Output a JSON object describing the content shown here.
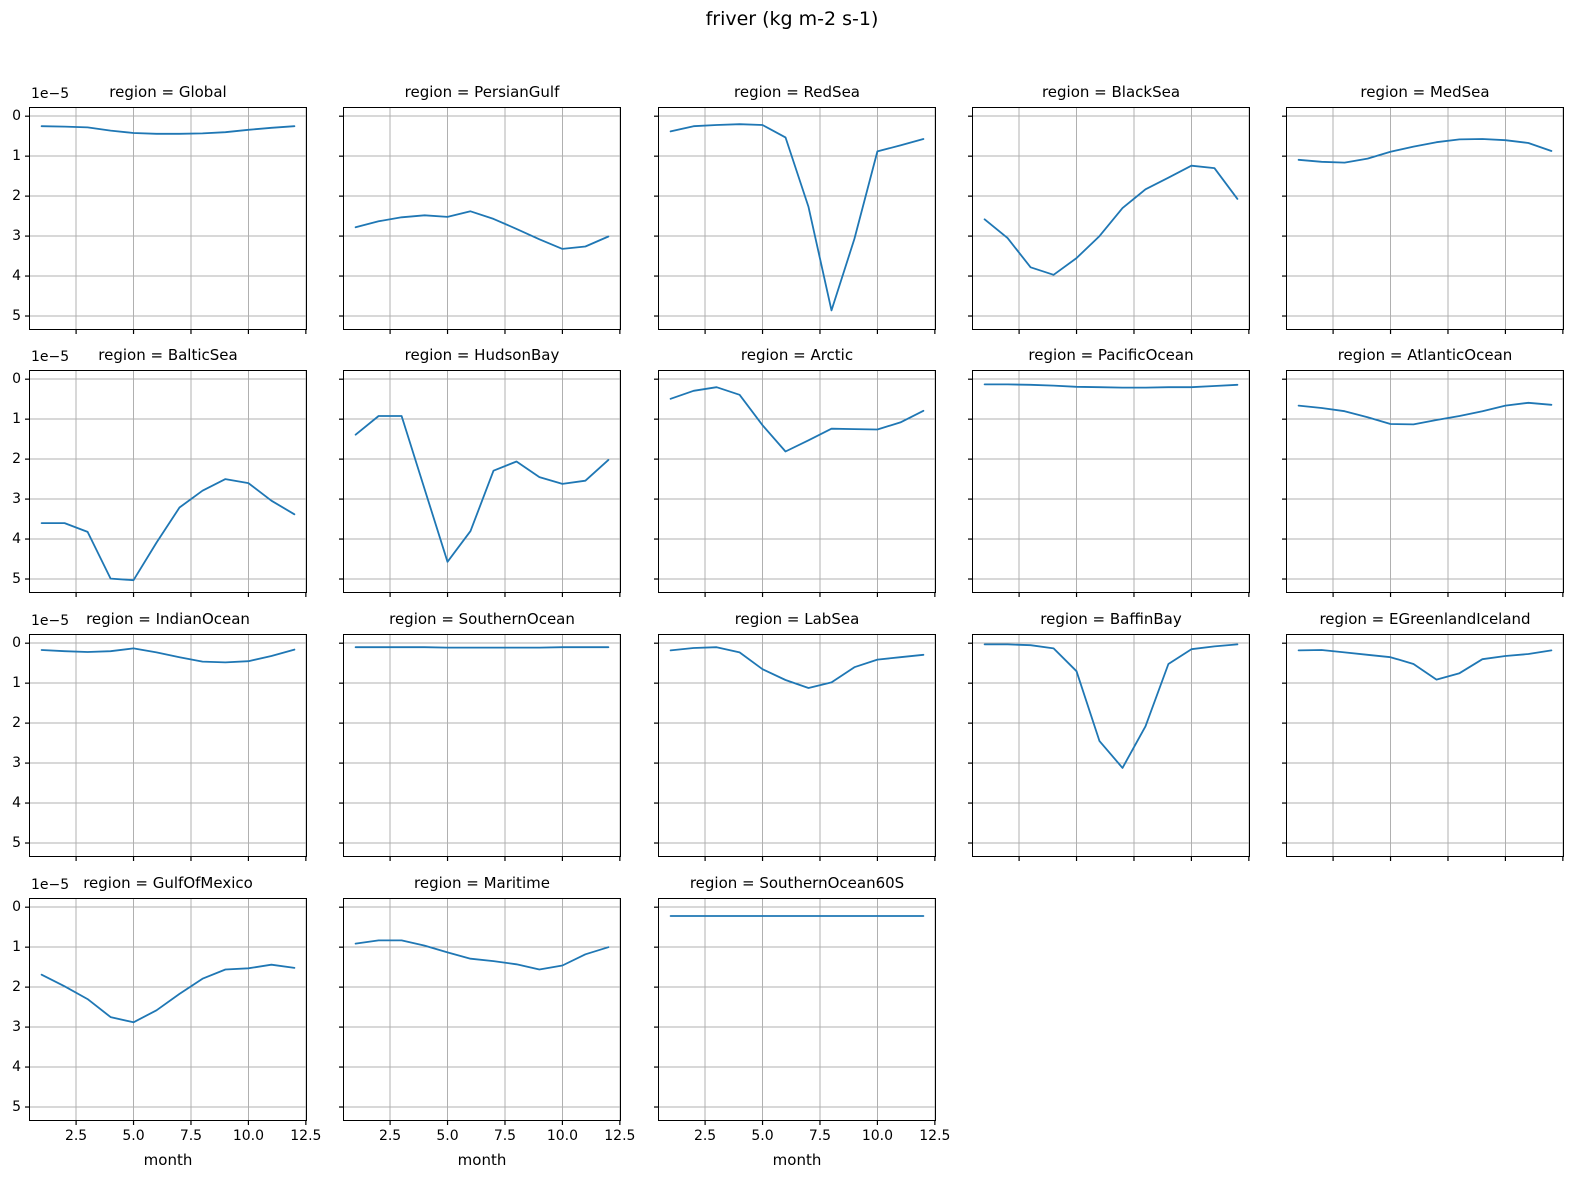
{
  "title": "friver (kg m-2 s-1)",
  "colors": {
    "line": "#1f77b4",
    "grid": "#b0b0b0",
    "spine": "#000000",
    "background": "#ffffff"
  },
  "chart_data": {
    "type": "line",
    "title": "friver (kg m-2 s-1)",
    "facet_title_prefix": "region = ",
    "xlabel": "month",
    "x": [
      1,
      2,
      3,
      4,
      5,
      6,
      7,
      8,
      9,
      10,
      11,
      12
    ],
    "x_ticks": [
      2.5,
      5.0,
      7.5,
      10.0,
      12.5
    ],
    "x_tick_labels": [
      "2.5",
      "5.0",
      "7.5",
      "10.0",
      "12.5"
    ],
    "y_ticks": [
      0,
      1,
      2,
      3,
      4,
      5
    ],
    "y_tick_labels": [
      "0",
      "1",
      "2",
      "3",
      "4",
      "5"
    ],
    "y_offset_label": "1e−5",
    "y_unit_scale": "1e-5",
    "y_increases_downward": true,
    "xlim": [
      0.45,
      12.55
    ],
    "ylim_display": [
      -0.23,
      5.35
    ],
    "grid": true,
    "legend": "none",
    "ncols": 5,
    "facets": [
      {
        "region": "Global",
        "values": [
          0.25,
          0.26,
          0.28,
          0.36,
          0.42,
          0.44,
          0.44,
          0.43,
          0.4,
          0.34,
          0.29,
          0.25
        ]
      },
      {
        "region": "PersianGulf",
        "values": [
          2.78,
          2.63,
          2.53,
          2.48,
          2.52,
          2.38,
          2.57,
          2.82,
          3.08,
          3.32,
          3.26,
          3.01
        ]
      },
      {
        "region": "RedSea",
        "values": [
          0.38,
          0.25,
          0.22,
          0.2,
          0.22,
          0.53,
          2.27,
          4.86,
          3.07,
          0.88,
          0.73,
          0.57
        ]
      },
      {
        "region": "BlackSea",
        "values": [
          2.58,
          3.05,
          3.78,
          3.97,
          3.55,
          3.0,
          2.3,
          1.83,
          1.54,
          1.24,
          1.3,
          2.07
        ]
      },
      {
        "region": "MedSea",
        "values": [
          1.09,
          1.14,
          1.16,
          1.06,
          0.89,
          0.76,
          0.65,
          0.58,
          0.57,
          0.6,
          0.67,
          0.87
        ]
      },
      {
        "region": "BalticSea",
        "values": [
          3.6,
          3.6,
          3.82,
          4.99,
          5.03,
          4.09,
          3.21,
          2.79,
          2.5,
          2.6,
          3.04,
          3.38
        ]
      },
      {
        "region": "HudsonBay",
        "values": [
          1.39,
          0.92,
          0.92,
          2.75,
          4.57,
          3.8,
          2.29,
          2.06,
          2.45,
          2.62,
          2.54,
          2.02
        ]
      },
      {
        "region": "Arctic",
        "values": [
          0.49,
          0.29,
          0.2,
          0.39,
          1.15,
          1.81,
          1.53,
          1.24,
          1.25,
          1.26,
          1.08,
          0.79
        ]
      },
      {
        "region": "PacificOcean",
        "values": [
          0.13,
          0.13,
          0.14,
          0.16,
          0.19,
          0.2,
          0.21,
          0.21,
          0.2,
          0.2,
          0.17,
          0.14
        ]
      },
      {
        "region": "AtlanticOcean",
        "values": [
          0.66,
          0.72,
          0.8,
          0.95,
          1.12,
          1.13,
          1.02,
          0.92,
          0.8,
          0.66,
          0.59,
          0.64
        ]
      },
      {
        "region": "IndianOcean",
        "values": [
          0.17,
          0.2,
          0.22,
          0.2,
          0.13,
          0.23,
          0.35,
          0.46,
          0.48,
          0.45,
          0.32,
          0.16
        ]
      },
      {
        "region": "SouthernOcean",
        "values": [
          0.1,
          0.1,
          0.1,
          0.1,
          0.11,
          0.11,
          0.11,
          0.11,
          0.11,
          0.1,
          0.1,
          0.1
        ]
      },
      {
        "region": "LabSea",
        "values": [
          0.18,
          0.12,
          0.1,
          0.23,
          0.65,
          0.92,
          1.12,
          0.98,
          0.6,
          0.41,
          0.35,
          0.29
        ]
      },
      {
        "region": "BaffinBay",
        "values": [
          0.03,
          0.03,
          0.05,
          0.13,
          0.7,
          2.45,
          3.12,
          2.08,
          0.52,
          0.15,
          0.08,
          0.03
        ]
      },
      {
        "region": "EGreenlandIceland",
        "values": [
          0.18,
          0.17,
          0.23,
          0.29,
          0.35,
          0.52,
          0.91,
          0.75,
          0.4,
          0.32,
          0.27,
          0.18
        ]
      },
      {
        "region": "GulfOfMexico",
        "values": [
          1.69,
          1.98,
          2.3,
          2.75,
          2.88,
          2.58,
          2.17,
          1.79,
          1.56,
          1.53,
          1.44,
          1.52
        ]
      },
      {
        "region": "Maritime",
        "values": [
          0.91,
          0.83,
          0.83,
          0.96,
          1.13,
          1.29,
          1.35,
          1.43,
          1.56,
          1.46,
          1.18,
          1.0
        ]
      },
      {
        "region": "SouthernOcean60S",
        "values": [
          0.22,
          0.22,
          0.22,
          0.22,
          0.22,
          0.22,
          0.22,
          0.22,
          0.22,
          0.22,
          0.22,
          0.22
        ]
      }
    ]
  }
}
